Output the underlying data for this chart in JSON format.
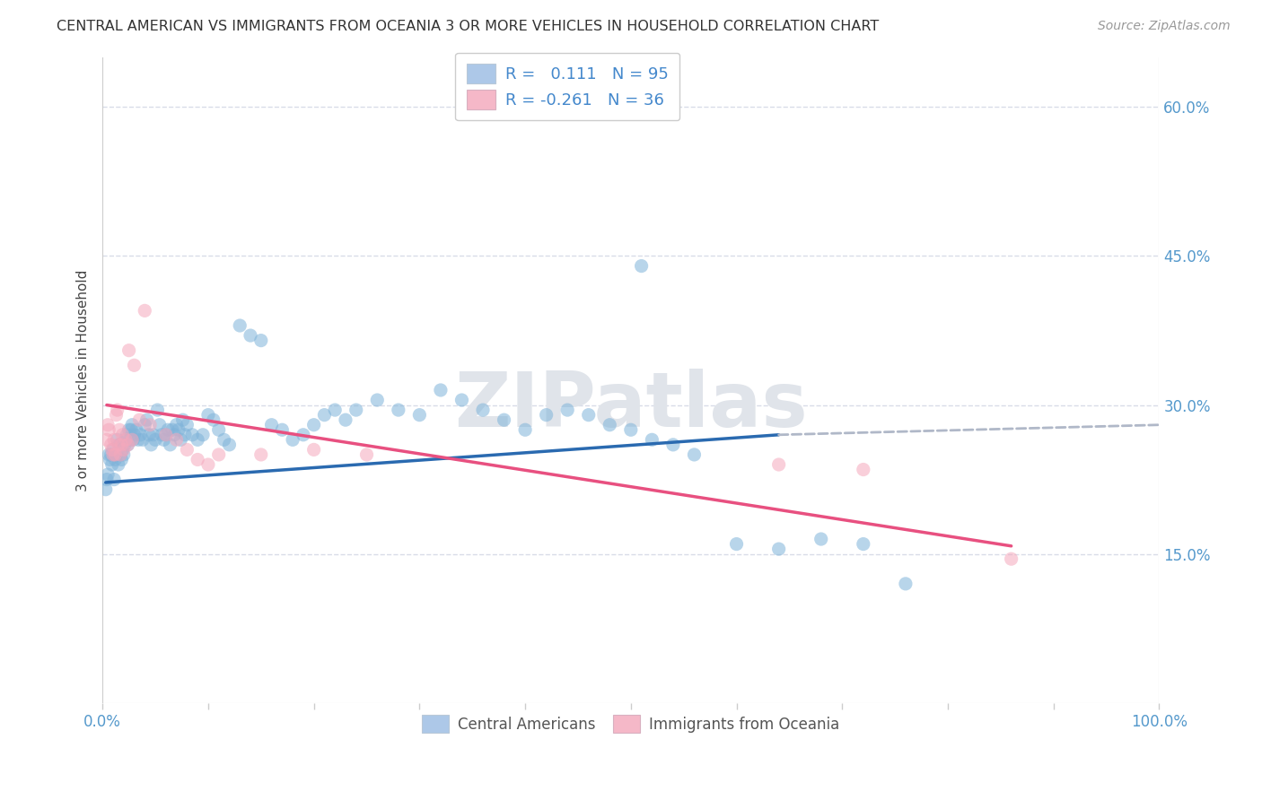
{
  "title": "CENTRAL AMERICAN VS IMMIGRANTS FROM OCEANIA 3 OR MORE VEHICLES IN HOUSEHOLD CORRELATION CHART",
  "source": "Source: ZipAtlas.com",
  "ylabel": "3 or more Vehicles in Household",
  "xlim": [
    0.0,
    1.0
  ],
  "ylim": [
    0.0,
    0.65
  ],
  "ytick_labels_right": [
    "15.0%",
    "30.0%",
    "45.0%",
    "60.0%"
  ],
  "ytick_vals_right": [
    0.15,
    0.3,
    0.45,
    0.6
  ],
  "legend_label1": "R =   0.111   N = 95",
  "legend_label2": "R = -0.261   N = 36",
  "legend_color1": "#adc8e8",
  "legend_color2": "#f5b8c8",
  "watermark": "ZIPatlas",
  "series1_color": "#7fb3d9",
  "series2_color": "#f5a8bc",
  "trendline1_color": "#2a6ab0",
  "trendline2_color": "#e85080",
  "trendline_dashed_color": "#b0b8c8",
  "background_color": "#ffffff",
  "grid_color": "#d8dce8",
  "blue_x": [
    0.003,
    0.004,
    0.005,
    0.006,
    0.007,
    0.008,
    0.009,
    0.01,
    0.011,
    0.012,
    0.013,
    0.014,
    0.015,
    0.016,
    0.017,
    0.018,
    0.019,
    0.02,
    0.021,
    0.022,
    0.023,
    0.024,
    0.025,
    0.026,
    0.027,
    0.028,
    0.029,
    0.03,
    0.032,
    0.034,
    0.036,
    0.038,
    0.04,
    0.042,
    0.044,
    0.046,
    0.048,
    0.05,
    0.052,
    0.054,
    0.056,
    0.058,
    0.06,
    0.062,
    0.064,
    0.066,
    0.068,
    0.07,
    0.072,
    0.074,
    0.076,
    0.078,
    0.08,
    0.085,
    0.09,
    0.095,
    0.1,
    0.105,
    0.11,
    0.115,
    0.12,
    0.13,
    0.14,
    0.15,
    0.16,
    0.17,
    0.18,
    0.19,
    0.2,
    0.21,
    0.22,
    0.23,
    0.24,
    0.26,
    0.28,
    0.3,
    0.32,
    0.34,
    0.36,
    0.38,
    0.4,
    0.42,
    0.44,
    0.46,
    0.48,
    0.5,
    0.52,
    0.54,
    0.56,
    0.6,
    0.64,
    0.68,
    0.72,
    0.76,
    0.51
  ],
  "blue_y": [
    0.215,
    0.225,
    0.23,
    0.25,
    0.245,
    0.25,
    0.24,
    0.255,
    0.225,
    0.245,
    0.25,
    0.265,
    0.24,
    0.26,
    0.25,
    0.245,
    0.255,
    0.25,
    0.26,
    0.265,
    0.27,
    0.26,
    0.275,
    0.265,
    0.275,
    0.28,
    0.265,
    0.27,
    0.275,
    0.265,
    0.27,
    0.265,
    0.28,
    0.285,
    0.27,
    0.26,
    0.27,
    0.265,
    0.295,
    0.28,
    0.27,
    0.265,
    0.27,
    0.275,
    0.26,
    0.275,
    0.27,
    0.28,
    0.275,
    0.265,
    0.285,
    0.27,
    0.28,
    0.27,
    0.265,
    0.27,
    0.29,
    0.285,
    0.275,
    0.265,
    0.26,
    0.38,
    0.37,
    0.365,
    0.28,
    0.275,
    0.265,
    0.27,
    0.28,
    0.29,
    0.295,
    0.285,
    0.295,
    0.305,
    0.295,
    0.29,
    0.315,
    0.305,
    0.295,
    0.285,
    0.275,
    0.29,
    0.295,
    0.29,
    0.28,
    0.275,
    0.265,
    0.26,
    0.25,
    0.16,
    0.155,
    0.165,
    0.16,
    0.12,
    0.44
  ],
  "pink_x": [
    0.004,
    0.005,
    0.006,
    0.008,
    0.009,
    0.01,
    0.011,
    0.012,
    0.013,
    0.014,
    0.015,
    0.016,
    0.017,
    0.018,
    0.019,
    0.02,
    0.022,
    0.024,
    0.025,
    0.028,
    0.03,
    0.035,
    0.04,
    0.045,
    0.06,
    0.07,
    0.08,
    0.09,
    0.1,
    0.11,
    0.15,
    0.2,
    0.25,
    0.64,
    0.72,
    0.86
  ],
  "pink_y": [
    0.265,
    0.28,
    0.275,
    0.26,
    0.255,
    0.25,
    0.265,
    0.25,
    0.29,
    0.295,
    0.26,
    0.275,
    0.25,
    0.26,
    0.27,
    0.255,
    0.265,
    0.26,
    0.355,
    0.265,
    0.34,
    0.285,
    0.395,
    0.28,
    0.27,
    0.265,
    0.255,
    0.245,
    0.24,
    0.25,
    0.25,
    0.255,
    0.25,
    0.24,
    0.235,
    0.145
  ],
  "trendline1_x0": 0.003,
  "trendline1_x_solid_end": 0.64,
  "trendline1_x1": 1.0,
  "trendline2_x0": 0.004,
  "trendline2_x1": 0.86
}
